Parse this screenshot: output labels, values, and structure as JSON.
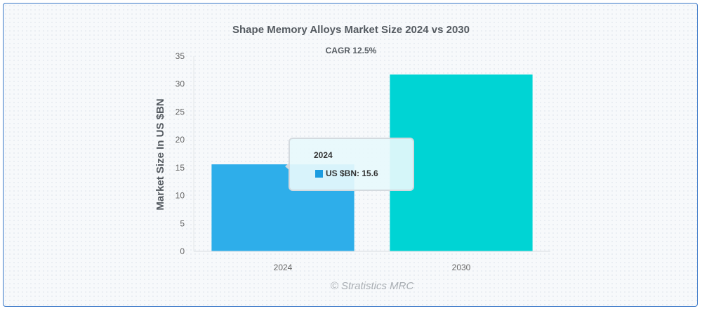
{
  "chart_data": {
    "type": "bar",
    "title": "Shape Memory Alloys Market Size 2024 vs 2030",
    "subtitle": "CAGR 12.5%",
    "ylabel": "Market Size In US $BN",
    "xlabel": "",
    "categories": [
      "2024",
      "2030"
    ],
    "series": [
      {
        "name": "US $BN",
        "values": [
          15.6,
          31.7
        ],
        "colors": [
          "#2eaeea",
          "#00d4d4"
        ]
      }
    ],
    "ylim": [
      0,
      35
    ],
    "yticks": [
      "0",
      "5",
      "10",
      "15",
      "20",
      "25",
      "30",
      "35"
    ],
    "grid": false,
    "legend": "none"
  },
  "tooltip": {
    "title": "2024",
    "series_label": "US $BN",
    "value": "15.6",
    "text": "US $BN: 15.6",
    "color": "#1a9ce0"
  },
  "watermark": "© Stratistics MRC"
}
